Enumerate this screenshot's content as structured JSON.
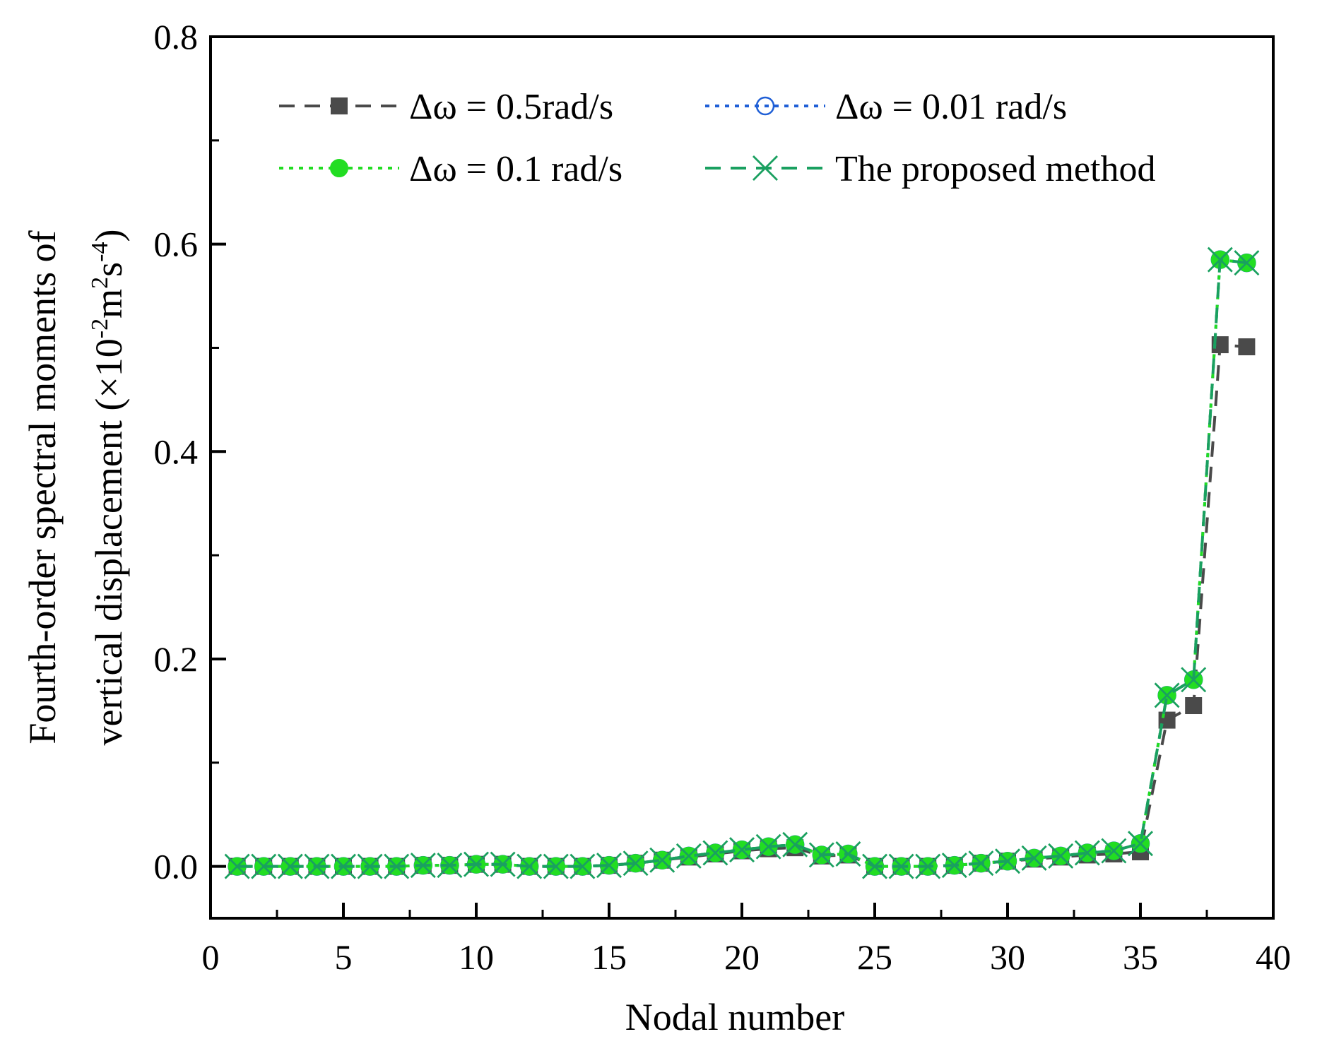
{
  "chart_data": {
    "type": "line",
    "title": "",
    "xlabel": "Nodal number",
    "ylabel_line1": "Fourth-order spectral moments of",
    "ylabel_line2_prefix": "vertical displacement (×10",
    "ylabel_sup1": "-2",
    "ylabel_mid": "m",
    "ylabel_sup2": "2",
    "ylabel_mid2": "s",
    "ylabel_sup3": "-4",
    "ylabel_suffix": ")",
    "xlim": [
      0,
      40
    ],
    "ylim": [
      -0.05,
      0.8
    ],
    "xticks": [
      0,
      5,
      10,
      15,
      20,
      25,
      30,
      35,
      40
    ],
    "xtick_labels": [
      "0",
      "5",
      "10",
      "15",
      "20",
      "25",
      "30",
      "35",
      "40"
    ],
    "yticks": [
      0.0,
      0.2,
      0.4,
      0.6,
      0.8
    ],
    "ytick_labels": [
      "0.0",
      "0.2",
      "0.4",
      "0.6",
      "0.8"
    ],
    "legend_position": "top",
    "x": [
      1,
      2,
      3,
      4,
      5,
      6,
      7,
      8,
      9,
      10,
      11,
      12,
      13,
      14,
      15,
      16,
      17,
      18,
      19,
      20,
      21,
      22,
      23,
      24,
      25,
      26,
      27,
      28,
      29,
      30,
      31,
      32,
      33,
      34,
      35,
      36,
      37,
      38,
      39
    ],
    "series": [
      {
        "name": "Δω = 0.5rad/s",
        "color": "#4a4a4a",
        "marker": "square",
        "dash": "dash",
        "values": [
          0.0,
          0.0,
          0.0,
          0.0,
          0.0,
          0.0,
          0.0,
          0.001,
          0.001,
          0.002,
          0.002,
          0.0,
          0.0,
          0.0,
          0.001,
          0.003,
          0.006,
          0.009,
          0.012,
          0.015,
          0.017,
          0.018,
          0.01,
          0.011,
          0.0,
          0.0,
          0.0,
          0.001,
          0.003,
          0.005,
          0.007,
          0.009,
          0.011,
          0.012,
          0.014,
          0.141,
          0.155,
          0.503,
          0.501
        ]
      },
      {
        "name": "Δω = 0.01 rad/s",
        "color": "#1f5fd6",
        "marker": "circle-open",
        "dash": "dot",
        "values": [
          0.0,
          0.0,
          0.0,
          0.0,
          0.0,
          0.0,
          0.0,
          0.001,
          0.001,
          0.002,
          0.002,
          0.0,
          0.0,
          0.0,
          0.001,
          0.003,
          0.006,
          0.01,
          0.013,
          0.016,
          0.019,
          0.021,
          0.011,
          0.012,
          0.0,
          0.0,
          0.0,
          0.001,
          0.003,
          0.005,
          0.008,
          0.01,
          0.013,
          0.015,
          0.022,
          0.165,
          0.18,
          0.585,
          0.582
        ]
      },
      {
        "name": "Δω = 0.1 rad/s",
        "color": "#22dd22",
        "marker": "circle-filled",
        "dash": "dot",
        "values": [
          0.0,
          0.0,
          0.0,
          0.0,
          0.0,
          0.0,
          0.0,
          0.001,
          0.001,
          0.002,
          0.002,
          0.0,
          0.0,
          0.0,
          0.001,
          0.003,
          0.006,
          0.01,
          0.013,
          0.016,
          0.019,
          0.021,
          0.011,
          0.012,
          0.0,
          0.0,
          0.0,
          0.001,
          0.003,
          0.005,
          0.008,
          0.01,
          0.013,
          0.015,
          0.022,
          0.165,
          0.18,
          0.585,
          0.582
        ]
      },
      {
        "name": "The proposed method",
        "color": "#1aa060",
        "marker": "x",
        "dash": "dash",
        "values": [
          0.0,
          0.0,
          0.0,
          0.0,
          0.0,
          0.0,
          0.0,
          0.001,
          0.001,
          0.002,
          0.002,
          0.0,
          0.0,
          0.0,
          0.001,
          0.003,
          0.006,
          0.01,
          0.013,
          0.016,
          0.019,
          0.021,
          0.011,
          0.012,
          0.0,
          0.0,
          0.0,
          0.001,
          0.003,
          0.005,
          0.008,
          0.01,
          0.013,
          0.015,
          0.022,
          0.165,
          0.18,
          0.585,
          0.582
        ]
      }
    ]
  }
}
